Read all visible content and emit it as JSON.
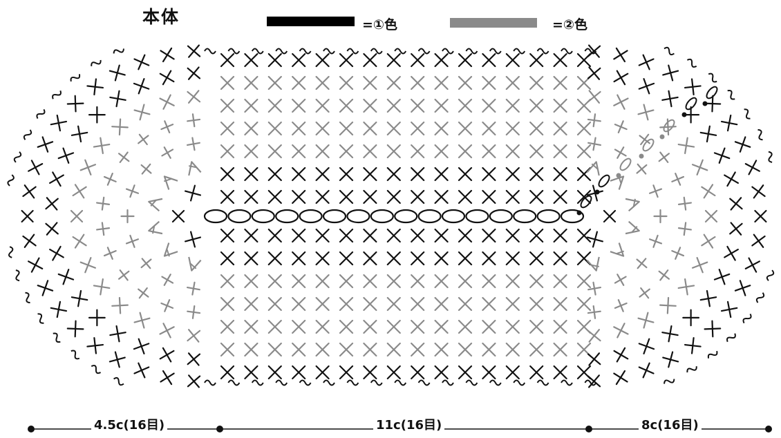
{
  "title": "本体",
  "legend": {
    "color1": {
      "label": "=①色",
      "swatch": "#000000"
    },
    "color2": {
      "label": "=②色",
      "swatch": "#8a8a8a"
    }
  },
  "colors": {
    "color1": "#111111",
    "color2": "#8a8a8a"
  },
  "dimensions": [
    {
      "label": "4.5c(16目)"
    },
    {
      "label": "11c(16目)"
    },
    {
      "label": "8c(16目)"
    }
  ],
  "foundation_chain_count": 16
}
